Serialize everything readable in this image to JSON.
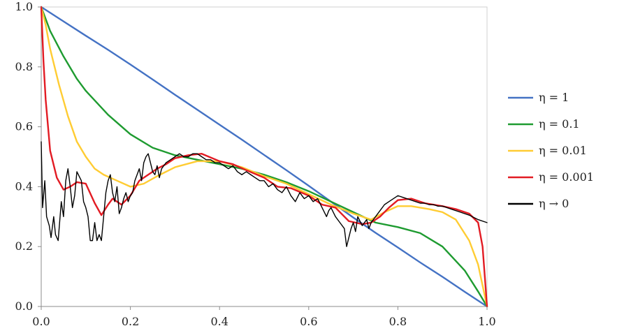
{
  "chart_data": {
    "type": "line",
    "title": "",
    "xlabel": "",
    "ylabel": "",
    "xlim": [
      0,
      1
    ],
    "ylim": [
      0,
      1
    ],
    "x_ticks": [
      "0.0",
      "0.2",
      "0.4",
      "0.6",
      "0.8",
      "1.0"
    ],
    "y_ticks": [
      "0.0",
      "0.2",
      "0.4",
      "0.6",
      "0.8",
      "1.0"
    ],
    "grid": false,
    "legend_position": "right",
    "series": [
      {
        "name": "η = 1",
        "color": "#4472C4",
        "points": [
          [
            0,
            1
          ],
          [
            0.05,
            0.952
          ],
          [
            0.1,
            0.904
          ],
          [
            0.15,
            0.857
          ],
          [
            0.2,
            0.808
          ],
          [
            0.25,
            0.758
          ],
          [
            0.3,
            0.707
          ],
          [
            0.35,
            0.657
          ],
          [
            0.4,
            0.607
          ],
          [
            0.45,
            0.557
          ],
          [
            0.5,
            0.506
          ],
          [
            0.55,
            0.455
          ],
          [
            0.6,
            0.403
          ],
          [
            0.65,
            0.35
          ],
          [
            0.7,
            0.297
          ],
          [
            0.75,
            0.246
          ],
          [
            0.8,
            0.197
          ],
          [
            0.85,
            0.147
          ],
          [
            0.9,
            0.099
          ],
          [
            0.95,
            0.049
          ],
          [
            1,
            0
          ]
        ]
      },
      {
        "name": "η = 0.1",
        "color": "#1E9B30",
        "points": [
          [
            0,
            1
          ],
          [
            0.02,
            0.92
          ],
          [
            0.05,
            0.835
          ],
          [
            0.08,
            0.76
          ],
          [
            0.1,
            0.72
          ],
          [
            0.15,
            0.64
          ],
          [
            0.2,
            0.575
          ],
          [
            0.25,
            0.53
          ],
          [
            0.3,
            0.505
          ],
          [
            0.35,
            0.49
          ],
          [
            0.4,
            0.475
          ],
          [
            0.45,
            0.46
          ],
          [
            0.5,
            0.44
          ],
          [
            0.55,
            0.415
          ],
          [
            0.6,
            0.385
          ],
          [
            0.65,
            0.35
          ],
          [
            0.7,
            0.315
          ],
          [
            0.75,
            0.28
          ],
          [
            0.8,
            0.265
          ],
          [
            0.85,
            0.245
          ],
          [
            0.9,
            0.2
          ],
          [
            0.95,
            0.12
          ],
          [
            0.98,
            0.05
          ],
          [
            1,
            0
          ]
        ]
      },
      {
        "name": "η = 0.01",
        "color": "#FFCC33",
        "points": [
          [
            0,
            1
          ],
          [
            0.01,
            0.94
          ],
          [
            0.02,
            0.86
          ],
          [
            0.04,
            0.74
          ],
          [
            0.06,
            0.635
          ],
          [
            0.08,
            0.55
          ],
          [
            0.1,
            0.5
          ],
          [
            0.12,
            0.46
          ],
          [
            0.14,
            0.44
          ],
          [
            0.17,
            0.42
          ],
          [
            0.2,
            0.4
          ],
          [
            0.23,
            0.41
          ],
          [
            0.26,
            0.435
          ],
          [
            0.3,
            0.465
          ],
          [
            0.35,
            0.485
          ],
          [
            0.4,
            0.485
          ],
          [
            0.45,
            0.465
          ],
          [
            0.5,
            0.435
          ],
          [
            0.55,
            0.41
          ],
          [
            0.6,
            0.375
          ],
          [
            0.65,
            0.34
          ],
          [
            0.7,
            0.31
          ],
          [
            0.74,
            0.29
          ],
          [
            0.77,
            0.315
          ],
          [
            0.8,
            0.335
          ],
          [
            0.83,
            0.335
          ],
          [
            0.87,
            0.325
          ],
          [
            0.9,
            0.315
          ],
          [
            0.93,
            0.29
          ],
          [
            0.96,
            0.22
          ],
          [
            0.98,
            0.14
          ],
          [
            1,
            0
          ]
        ]
      },
      {
        "name": "η = 0.001",
        "color": "#E21B23",
        "points": [
          [
            0,
            1
          ],
          [
            0.005,
            0.82
          ],
          [
            0.01,
            0.69
          ],
          [
            0.02,
            0.52
          ],
          [
            0.035,
            0.43
          ],
          [
            0.05,
            0.39
          ],
          [
            0.065,
            0.4
          ],
          [
            0.08,
            0.415
          ],
          [
            0.1,
            0.41
          ],
          [
            0.12,
            0.345
          ],
          [
            0.135,
            0.305
          ],
          [
            0.15,
            0.34
          ],
          [
            0.16,
            0.36
          ],
          [
            0.18,
            0.34
          ],
          [
            0.2,
            0.37
          ],
          [
            0.22,
            0.42
          ],
          [
            0.24,
            0.44
          ],
          [
            0.26,
            0.46
          ],
          [
            0.28,
            0.475
          ],
          [
            0.3,
            0.495
          ],
          [
            0.33,
            0.505
          ],
          [
            0.36,
            0.51
          ],
          [
            0.4,
            0.485
          ],
          [
            0.43,
            0.475
          ],
          [
            0.46,
            0.455
          ],
          [
            0.5,
            0.43
          ],
          [
            0.53,
            0.4
          ],
          [
            0.56,
            0.395
          ],
          [
            0.6,
            0.37
          ],
          [
            0.63,
            0.34
          ],
          [
            0.66,
            0.33
          ],
          [
            0.69,
            0.285
          ],
          [
            0.72,
            0.275
          ],
          [
            0.74,
            0.28
          ],
          [
            0.76,
            0.3
          ],
          [
            0.78,
            0.33
          ],
          [
            0.8,
            0.355
          ],
          [
            0.83,
            0.36
          ],
          [
            0.86,
            0.345
          ],
          [
            0.9,
            0.335
          ],
          [
            0.93,
            0.325
          ],
          [
            0.96,
            0.31
          ],
          [
            0.98,
            0.28
          ],
          [
            0.99,
            0.2
          ],
          [
            1,
            0
          ]
        ]
      },
      {
        "name": "η → 0",
        "color": "#000000",
        "points": [
          [
            0,
            0.55
          ],
          [
            0.003,
            0.33
          ],
          [
            0.008,
            0.42
          ],
          [
            0.012,
            0.3
          ],
          [
            0.018,
            0.27
          ],
          [
            0.022,
            0.23
          ],
          [
            0.028,
            0.3
          ],
          [
            0.032,
            0.24
          ],
          [
            0.038,
            0.22
          ],
          [
            0.045,
            0.35
          ],
          [
            0.05,
            0.3
          ],
          [
            0.055,
            0.42
          ],
          [
            0.06,
            0.46
          ],
          [
            0.065,
            0.4
          ],
          [
            0.07,
            0.33
          ],
          [
            0.075,
            0.37
          ],
          [
            0.08,
            0.45
          ],
          [
            0.09,
            0.42
          ],
          [
            0.095,
            0.35
          ],
          [
            0.1,
            0.33
          ],
          [
            0.105,
            0.3
          ],
          [
            0.11,
            0.22
          ],
          [
            0.115,
            0.22
          ],
          [
            0.12,
            0.28
          ],
          [
            0.125,
            0.22
          ],
          [
            0.13,
            0.24
          ],
          [
            0.135,
            0.22
          ],
          [
            0.14,
            0.3
          ],
          [
            0.145,
            0.38
          ],
          [
            0.15,
            0.42
          ],
          [
            0.155,
            0.44
          ],
          [
            0.16,
            0.38
          ],
          [
            0.165,
            0.35
          ],
          [
            0.17,
            0.4
          ],
          [
            0.175,
            0.31
          ],
          [
            0.18,
            0.33
          ],
          [
            0.185,
            0.36
          ],
          [
            0.19,
            0.38
          ],
          [
            0.195,
            0.35
          ],
          [
            0.2,
            0.37
          ],
          [
            0.205,
            0.38
          ],
          [
            0.21,
            0.42
          ],
          [
            0.215,
            0.44
          ],
          [
            0.22,
            0.46
          ],
          [
            0.225,
            0.42
          ],
          [
            0.23,
            0.48
          ],
          [
            0.235,
            0.5
          ],
          [
            0.24,
            0.51
          ],
          [
            0.245,
            0.48
          ],
          [
            0.25,
            0.45
          ],
          [
            0.255,
            0.44
          ],
          [
            0.26,
            0.47
          ],
          [
            0.265,
            0.43
          ],
          [
            0.27,
            0.46
          ],
          [
            0.275,
            0.47
          ],
          [
            0.28,
            0.48
          ],
          [
            0.29,
            0.49
          ],
          [
            0.3,
            0.5
          ],
          [
            0.31,
            0.51
          ],
          [
            0.32,
            0.5
          ],
          [
            0.33,
            0.5
          ],
          [
            0.34,
            0.51
          ],
          [
            0.35,
            0.51
          ],
          [
            0.36,
            0.5
          ],
          [
            0.37,
            0.49
          ],
          [
            0.38,
            0.49
          ],
          [
            0.39,
            0.48
          ],
          [
            0.4,
            0.48
          ],
          [
            0.41,
            0.47
          ],
          [
            0.42,
            0.46
          ],
          [
            0.43,
            0.47
          ],
          [
            0.44,
            0.45
          ],
          [
            0.45,
            0.44
          ],
          [
            0.46,
            0.45
          ],
          [
            0.47,
            0.44
          ],
          [
            0.48,
            0.43
          ],
          [
            0.49,
            0.42
          ],
          [
            0.5,
            0.42
          ],
          [
            0.51,
            0.4
          ],
          [
            0.52,
            0.41
          ],
          [
            0.53,
            0.39
          ],
          [
            0.54,
            0.38
          ],
          [
            0.55,
            0.4
          ],
          [
            0.56,
            0.37
          ],
          [
            0.57,
            0.35
          ],
          [
            0.58,
            0.38
          ],
          [
            0.59,
            0.36
          ],
          [
            0.6,
            0.37
          ],
          [
            0.61,
            0.35
          ],
          [
            0.62,
            0.36
          ],
          [
            0.63,
            0.33
          ],
          [
            0.64,
            0.3
          ],
          [
            0.645,
            0.32
          ],
          [
            0.65,
            0.33
          ],
          [
            0.66,
            0.3
          ],
          [
            0.67,
            0.28
          ],
          [
            0.68,
            0.26
          ],
          [
            0.685,
            0.2
          ],
          [
            0.69,
            0.23
          ],
          [
            0.695,
            0.26
          ],
          [
            0.7,
            0.28
          ],
          [
            0.705,
            0.25
          ],
          [
            0.71,
            0.3
          ],
          [
            0.72,
            0.27
          ],
          [
            0.73,
            0.29
          ],
          [
            0.735,
            0.26
          ],
          [
            0.74,
            0.28
          ],
          [
            0.75,
            0.3
          ],
          [
            0.76,
            0.32
          ],
          [
            0.77,
            0.34
          ],
          [
            0.78,
            0.35
          ],
          [
            0.79,
            0.36
          ],
          [
            0.8,
            0.37
          ],
          [
            0.81,
            0.365
          ],
          [
            0.82,
            0.36
          ],
          [
            0.83,
            0.355
          ],
          [
            0.84,
            0.35
          ],
          [
            0.85,
            0.345
          ],
          [
            0.86,
            0.345
          ],
          [
            0.87,
            0.34
          ],
          [
            0.88,
            0.34
          ],
          [
            0.89,
            0.335
          ],
          [
            0.9,
            0.335
          ],
          [
            0.92,
            0.325
          ],
          [
            0.94,
            0.315
          ],
          [
            0.96,
            0.305
          ],
          [
            0.98,
            0.29
          ],
          [
            1,
            0.28
          ]
        ]
      }
    ]
  }
}
